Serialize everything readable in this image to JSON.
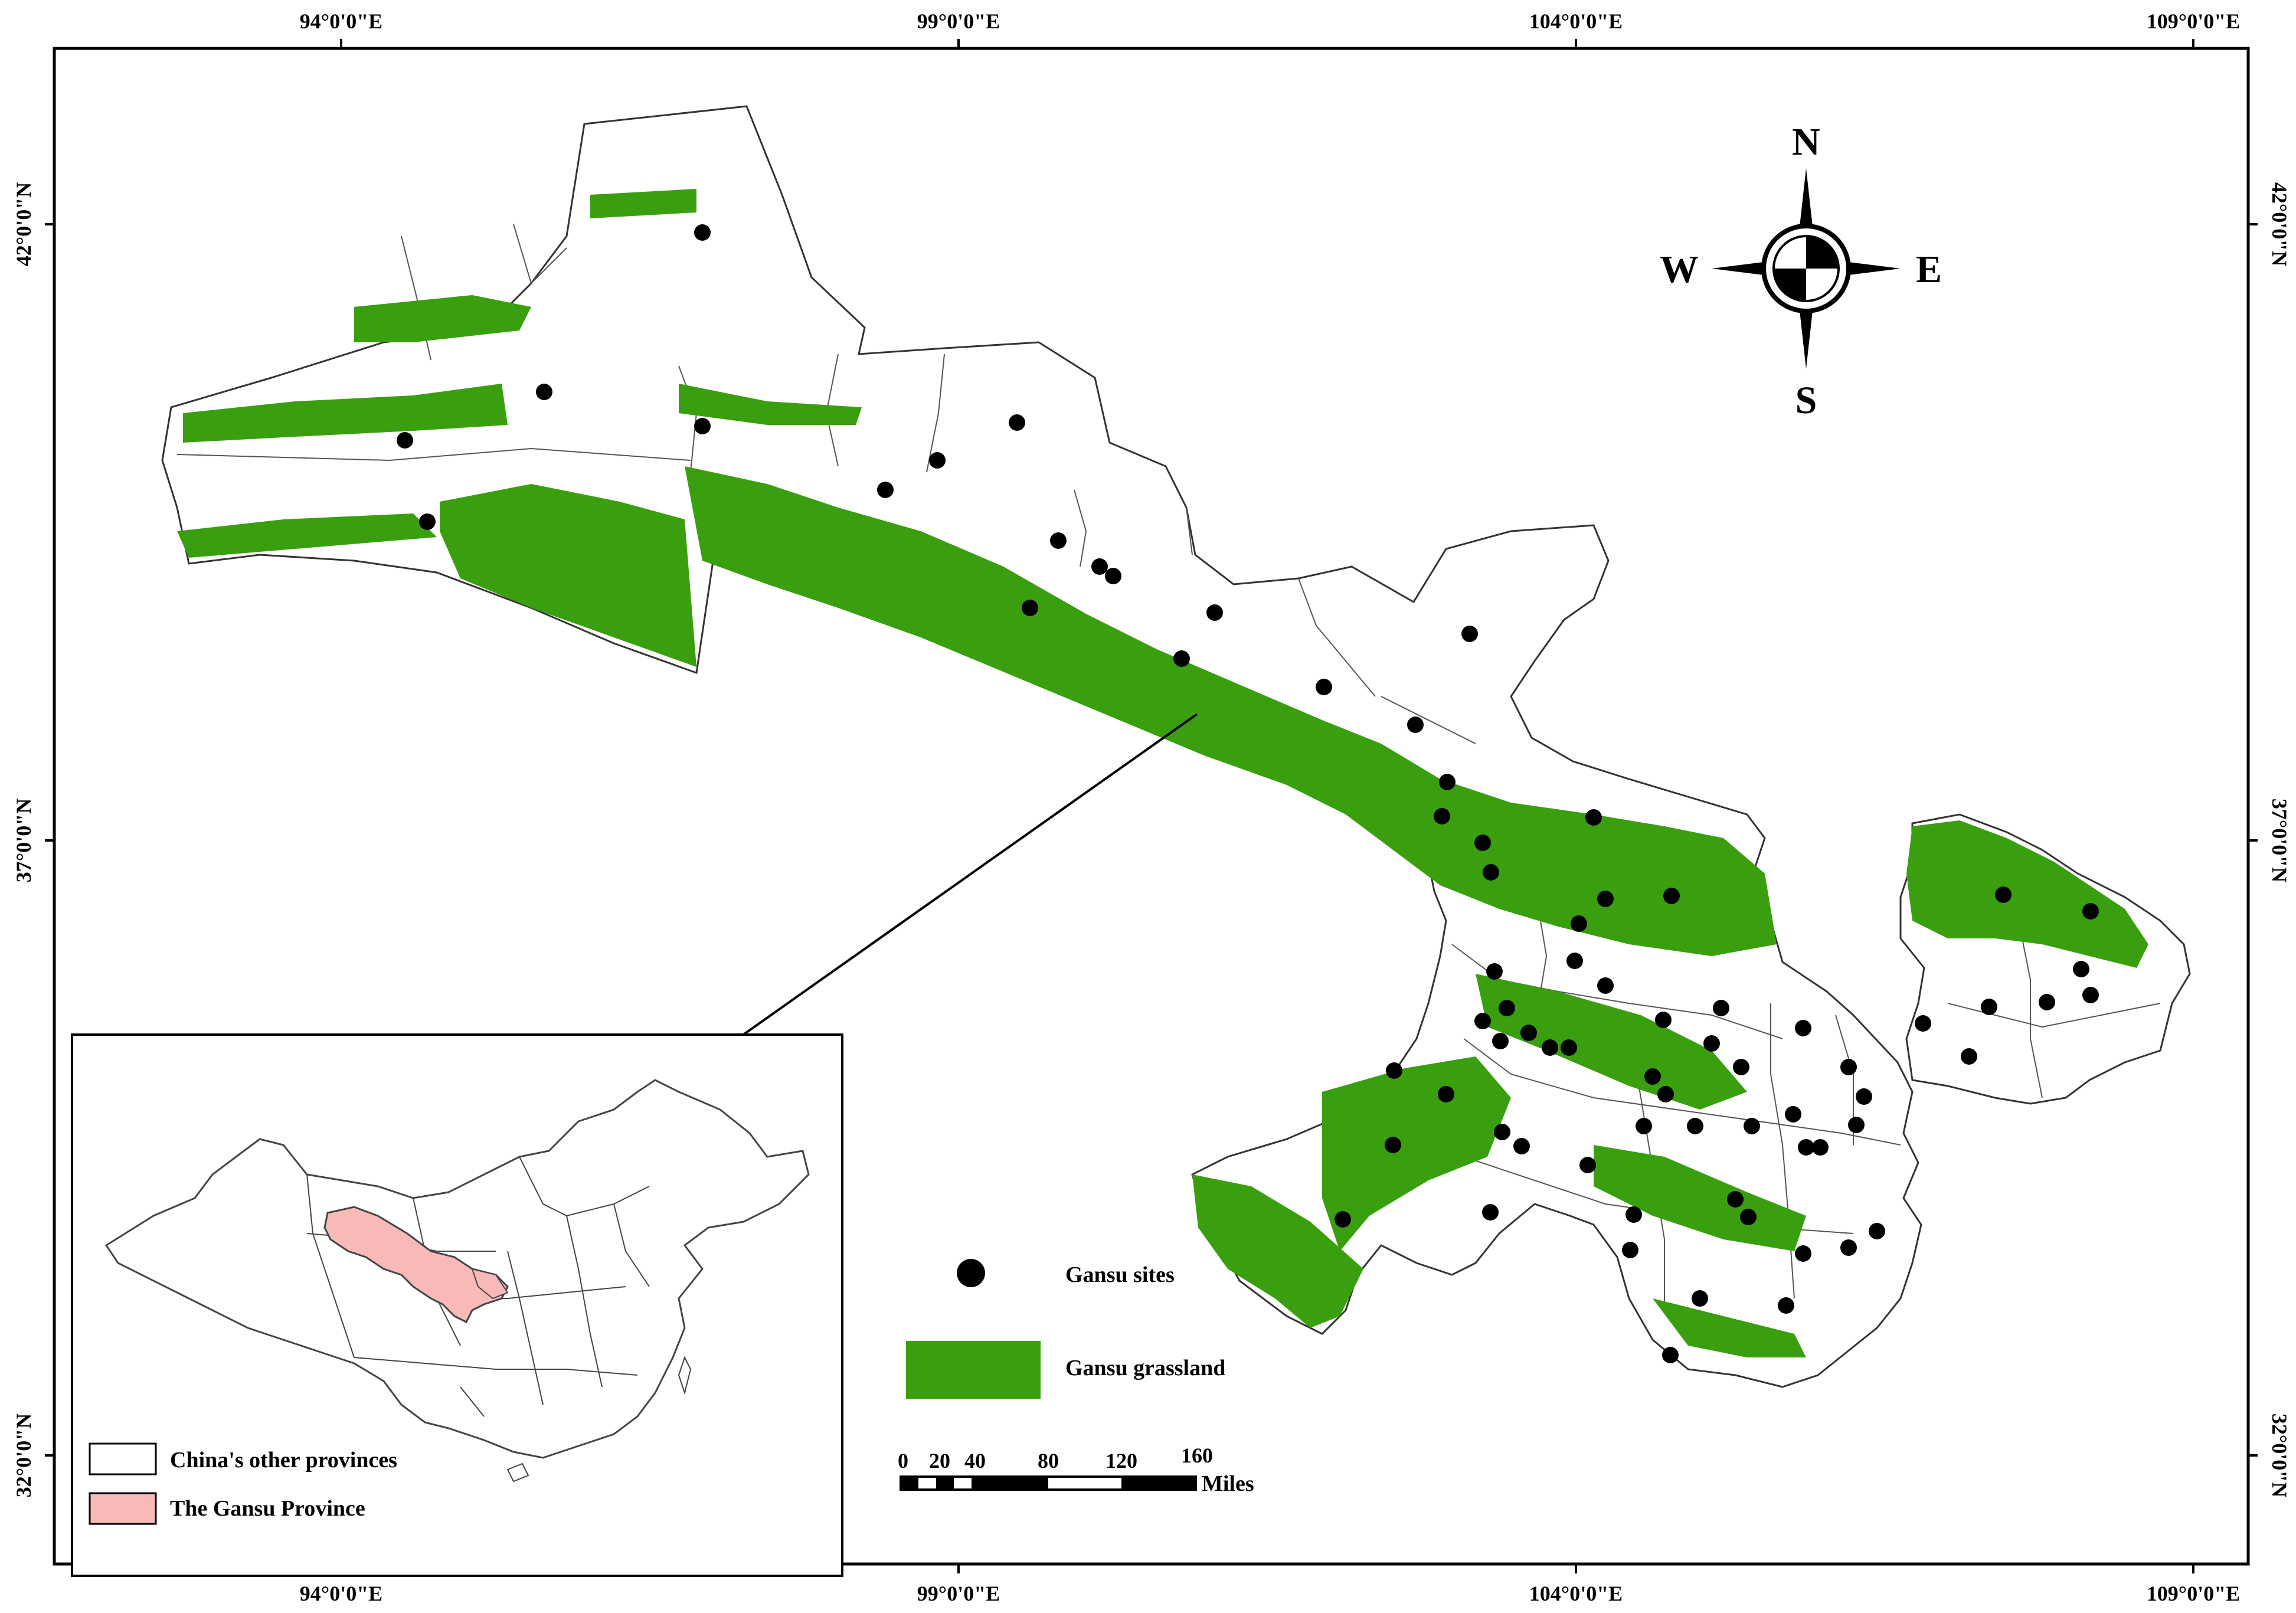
{
  "map": {
    "lon_labels": [
      "94°0'0\"E",
      "99°0'0\"E",
      "104°0'0\"E",
      "109°0'0\"E"
    ],
    "lat_labels": [
      "42°0'0\"N",
      "37°0'0\"N",
      "32°0'0\"N"
    ]
  },
  "north_arrow": {
    "n": "N",
    "s": "S",
    "e": "E",
    "w": "W"
  },
  "legend_main": {
    "sites_label": "Gansu sites",
    "grassland_label": "Gansu grassland",
    "colors": {
      "grassland": "#3a9f0f",
      "sites": "#000000"
    }
  },
  "scale_bar": {
    "ticks": [
      "0",
      "20",
      "40",
      "80",
      "120",
      "160"
    ],
    "unit": "Miles"
  },
  "inset": {
    "legend_other": "China's other provinces",
    "legend_gansu": "The Gansu Province",
    "colors": {
      "other": "#ffffff",
      "gansu": "#f8b9b9"
    }
  },
  "sites_count": 78
}
